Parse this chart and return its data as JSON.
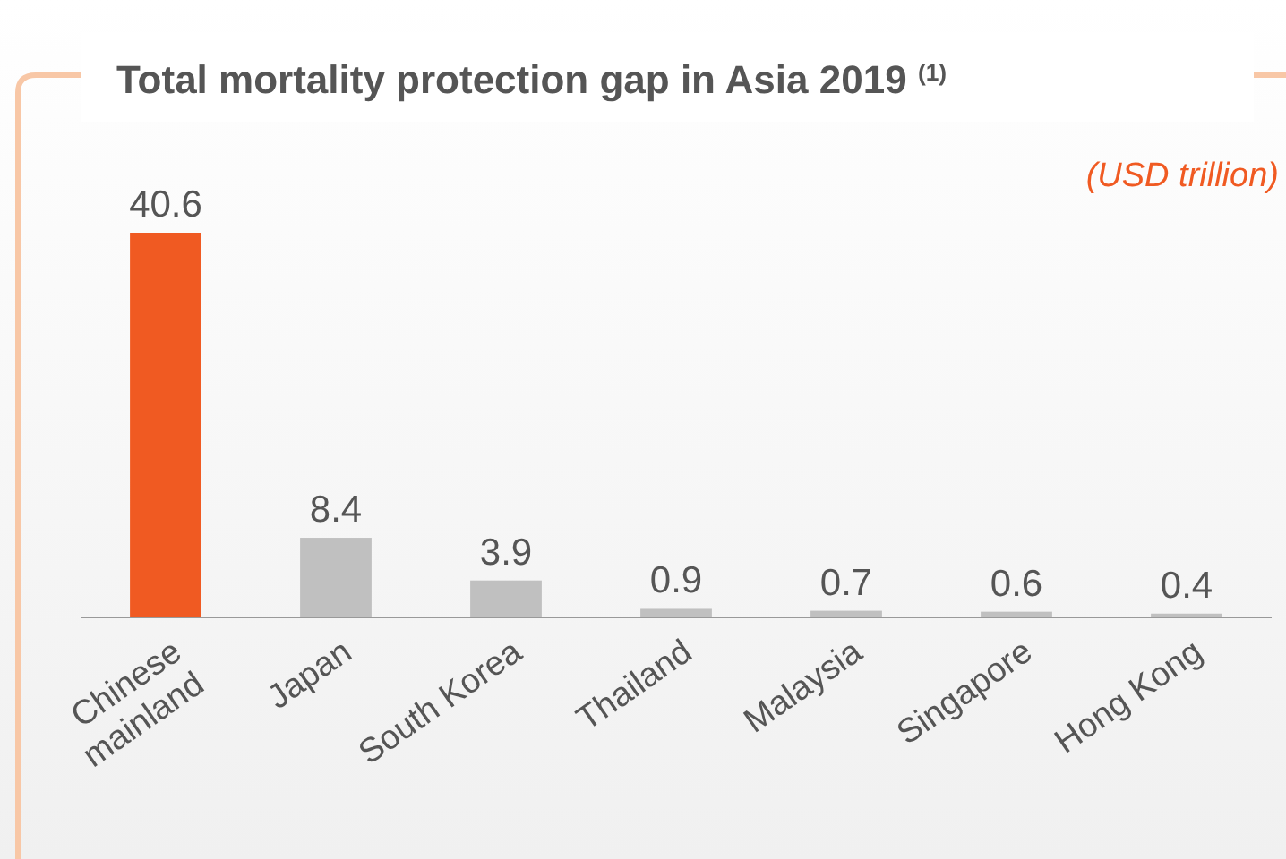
{
  "chart_data": {
    "type": "bar",
    "title": "Total mortality protection gap in Asia 2019 $^{(1)}$",
    "annotations": [
      "(USD trillion)"
    ],
    "categories": [
      "Chinese\nmainland",
      "Japan",
      "South Korea",
      "Thailand",
      "Malaysia",
      "Singapore",
      "Hong Kong"
    ],
    "values": [
      40.6,
      8.4,
      3.9,
      0.9,
      0.7,
      0.6,
      0.4
    ],
    "colors": [
      "#f05a22",
      "#c0c0c0",
      "#c0c0c0",
      "#c0c0c0",
      "#c0c0c0",
      "#c0c0c0",
      "#c0c0c0"
    ],
    "data_labels": true
  }
}
